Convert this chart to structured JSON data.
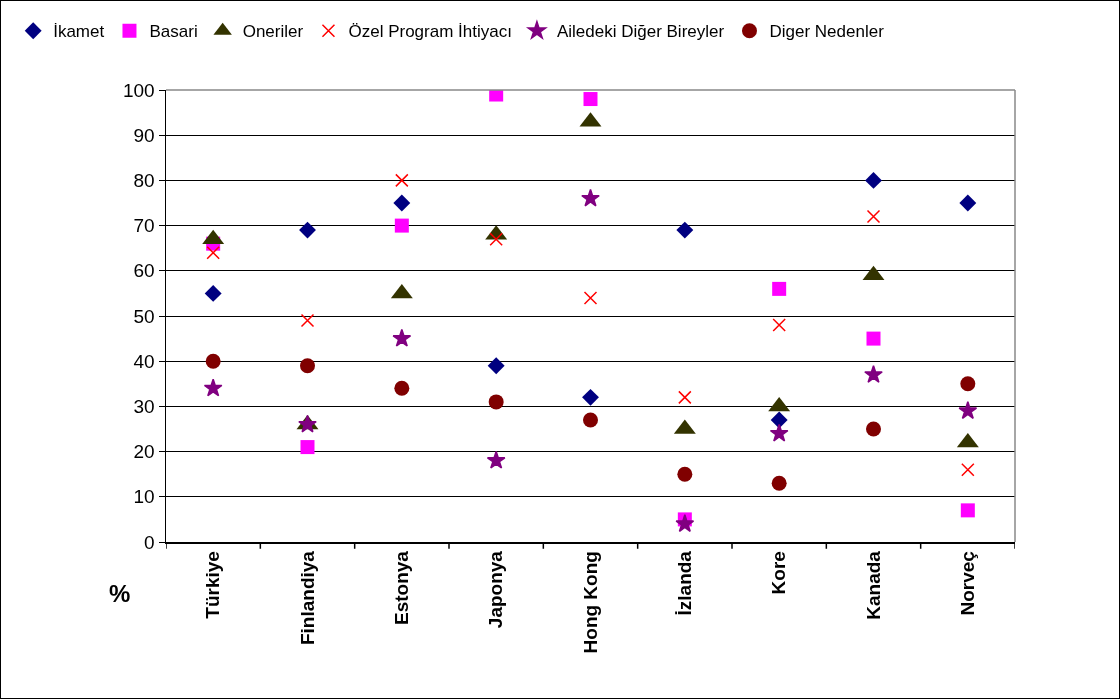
{
  "chart_data": {
    "type": "scatter",
    "ylabel": "%",
    "categories": [
      "Türkiye",
      "Finlandiya",
      "Estonya",
      "Japonya",
      "Hong Kong",
      "İzlanda",
      "Kore",
      "Kanada",
      "Norveç"
    ],
    "series": [
      {
        "name": "İkamet",
        "color": "#000080",
        "marker": "diamond",
        "values": [
          55,
          69,
          75,
          39,
          32,
          69,
          27,
          80,
          75
        ]
      },
      {
        "name": "Basari",
        "color": "#ff00ff",
        "marker": "square",
        "values": [
          66,
          21,
          70,
          99,
          98,
          5,
          56,
          45,
          7
        ]
      },
      {
        "name": "Oneriler",
        "color": "#333300",
        "marker": "triangle",
        "values": [
          67,
          26,
          55,
          68,
          93,
          25,
          30,
          59,
          22
        ]
      },
      {
        "name": "Özel Program İhtiyacı",
        "color": "#ff0000",
        "marker": "cross",
        "values": [
          64,
          49,
          80,
          67,
          54,
          32,
          48,
          72,
          16
        ]
      },
      {
        "name": "Ailedeki Diğer Bireyler",
        "color": "#800080",
        "marker": "star",
        "values": [
          34,
          26,
          45,
          18,
          76,
          4,
          24,
          37,
          29
        ]
      },
      {
        "name": "Diger Nedenler",
        "color": "#800000",
        "marker": "circle",
        "values": [
          40,
          39,
          34,
          31,
          27,
          15,
          13,
          25,
          35
        ]
      }
    ],
    "ylim": [
      0,
      100
    ],
    "yticks": [
      0,
      10,
      20,
      30,
      40,
      50,
      60,
      70,
      80,
      90,
      100
    ],
    "grid": "y",
    "legend": "top"
  }
}
